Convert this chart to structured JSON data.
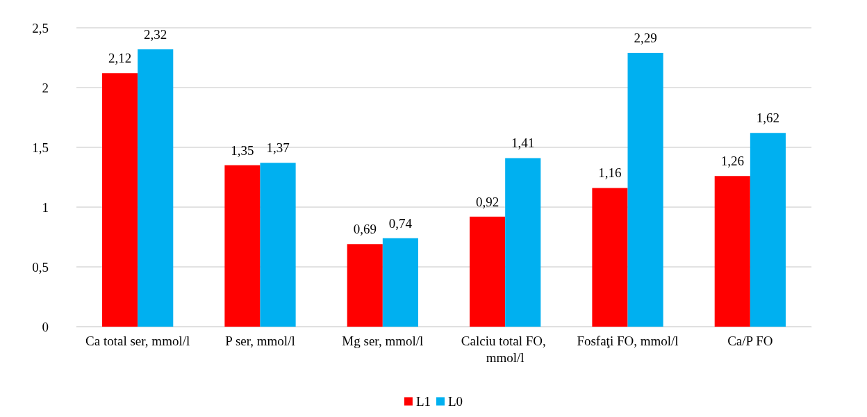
{
  "chart_data": {
    "type": "bar",
    "categories": [
      "Ca total ser, mmol/l",
      "P ser, mmol/l",
      "Mg ser, mmol/l",
      "Calciu total FO, mmol/l",
      "Fosfaţi FO, mmol/l",
      "Ca/P FO"
    ],
    "series": [
      {
        "name": "L1",
        "color": "#ff0000",
        "values": [
          2.12,
          1.35,
          0.69,
          0.92,
          1.16,
          1.26
        ],
        "value_labels": [
          "2,12",
          "1,35",
          "0,69",
          "0,92",
          "1,16",
          "1,26"
        ]
      },
      {
        "name": "L0",
        "color": "#00b0f0",
        "values": [
          2.32,
          1.37,
          0.74,
          1.41,
          2.29,
          1.62
        ],
        "value_labels": [
          "2,32",
          "1,37",
          "0,74",
          "1,41",
          "2,29",
          "1,62"
        ]
      }
    ],
    "ylim": [
      0,
      2.5
    ],
    "yticks": [
      0,
      {
        "value": 0.5,
        "label": "0,5"
      },
      1,
      {
        "value": 1.5,
        "label": "1,5"
      },
      2,
      {
        "value": 2.5,
        "label": "2,5"
      }
    ],
    "grid": "y",
    "legend": "bottom"
  }
}
